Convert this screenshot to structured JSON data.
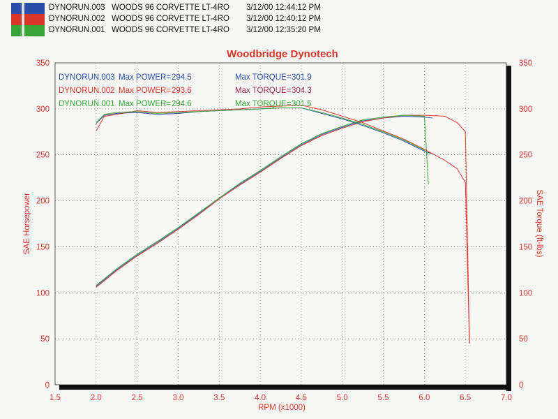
{
  "header": {
    "runs": [
      {
        "id": "DYNORUN.003",
        "vehicle": "WOODS 96 CORVETTE LT-4RO",
        "timestamp": "3/12/00 12:44:12 PM",
        "color": "#2b4fa8"
      },
      {
        "id": "DYNORUN.002",
        "vehicle": "WOODS 96 CORVETTE LT-4RO",
        "timestamp": "3/12/00 12:40:12 PM",
        "color": "#d9362b"
      },
      {
        "id": "DYNORUN.001",
        "vehicle": "WOODS 96 CORVETTE LT-4RO",
        "timestamp": "3/12/00 12:35:20 PM",
        "color": "#3aa63a"
      }
    ]
  },
  "chart_data": {
    "type": "line",
    "title": "Woodbridge Dynotech",
    "xlabel": "RPM (x1000)",
    "ylabel_left": "SAE Horsepower",
    "ylabel_right": "SAE Torque (ft-lbs)",
    "xlim": [
      1.5,
      7.0
    ],
    "ylim_left": [
      0,
      350
    ],
    "ylim_right": [
      0,
      350
    ],
    "x_ticks": [
      "1.5",
      "2.0",
      "2.5",
      "3.0",
      "3.5",
      "4.0",
      "4.5",
      "5.0",
      "5.5",
      "6.0",
      "6.5",
      "7.0"
    ],
    "y_ticks_left": [
      "0",
      "50",
      "100",
      "150",
      "200",
      "250",
      "300",
      "350"
    ],
    "y_ticks_right": [
      "0",
      "50",
      "100",
      "150",
      "200",
      "250",
      "300",
      "350"
    ],
    "grid": true,
    "annotations": [
      {
        "run": "DYNORUN.003",
        "power_label": "Max POWER=",
        "power_value": "294.5",
        "torque_label": "Max TORQUE=",
        "torque_value": "301.9",
        "color": "#2b4fa8"
      },
      {
        "run": "DYNORUN.002",
        "power_label": "Max POWER=",
        "power_value": "293.6",
        "torque_label": "Max TORQUE=",
        "torque_value": "304.3",
        "color": "#d9362b"
      },
      {
        "run": "DYNORUN.001",
        "power_label": "Max POWER=",
        "power_value": "294.6",
        "torque_label": "Max TORQUE=",
        "torque_value": "301.5",
        "color": "#3aa63a"
      }
    ],
    "series": [
      {
        "name": "DYNORUN.003",
        "measure": "power",
        "color": "#2b4fa8",
        "x": [
          2.0,
          2.25,
          2.5,
          2.75,
          3.0,
          3.25,
          3.5,
          3.75,
          4.0,
          4.25,
          4.5,
          4.75,
          5.0,
          5.25,
          5.5,
          5.75,
          6.0,
          6.1
        ],
        "y": [
          107,
          125,
          141,
          155,
          170,
          186,
          203,
          218,
          232,
          247,
          261,
          272,
          280,
          287,
          290,
          292,
          291,
          290
        ]
      },
      {
        "name": "DYNORUN.002",
        "measure": "power",
        "color": "#d9362b",
        "x": [
          2.0,
          2.25,
          2.5,
          2.75,
          3.0,
          3.25,
          3.5,
          3.75,
          4.0,
          4.25,
          4.5,
          4.75,
          5.0,
          5.25,
          5.5,
          5.75,
          6.0,
          6.25,
          6.4,
          6.5,
          6.55
        ],
        "y": [
          106,
          124,
          140,
          154,
          169,
          185,
          202,
          217,
          231,
          246,
          260,
          271,
          279,
          286,
          290,
          293,
          293,
          292,
          285,
          275,
          45
        ]
      },
      {
        "name": "DYNORUN.001",
        "measure": "power",
        "color": "#3aa63a",
        "x": [
          2.0,
          2.25,
          2.5,
          2.75,
          3.0,
          3.25,
          3.5,
          3.75,
          4.0,
          4.25,
          4.5,
          4.75,
          5.0,
          5.25,
          5.5,
          5.75,
          6.0,
          6.05
        ],
        "y": [
          108,
          126,
          142,
          156,
          171,
          187,
          203,
          219,
          233,
          248,
          262,
          273,
          281,
          288,
          291,
          293,
          292,
          218
        ]
      },
      {
        "name": "DYNORUN.003",
        "measure": "torque",
        "color": "#2b4fa8",
        "x": [
          2.0,
          2.1,
          2.25,
          2.5,
          2.75,
          3.0,
          3.25,
          3.5,
          3.75,
          4.0,
          4.25,
          4.5,
          4.75,
          5.0,
          5.25,
          5.5,
          5.75,
          6.0,
          6.1
        ],
        "y": [
          284,
          293,
          295,
          296,
          294,
          295,
          297,
          298,
          299,
          300,
          301,
          301,
          295,
          289,
          282,
          274,
          265,
          254,
          251
        ]
      },
      {
        "name": "DYNORUN.002",
        "measure": "torque",
        "color": "#d9362b",
        "x": [
          2.0,
          2.1,
          2.25,
          2.5,
          2.75,
          3.0,
          3.25,
          3.5,
          3.75,
          4.0,
          4.25,
          4.5,
          4.75,
          5.0,
          5.25,
          5.5,
          5.75,
          6.0,
          6.25,
          6.4,
          6.5,
          6.55
        ],
        "y": [
          276,
          292,
          294,
          298,
          296,
          297,
          298,
          299,
          300,
          302,
          303,
          304,
          299,
          292,
          285,
          276,
          267,
          256,
          244,
          235,
          220,
          45
        ]
      },
      {
        "name": "DYNORUN.001",
        "measure": "torque",
        "color": "#3aa63a",
        "x": [
          2.0,
          2.1,
          2.25,
          2.5,
          2.75,
          3.0,
          3.25,
          3.5,
          3.75,
          4.0,
          4.25,
          4.5,
          4.75,
          5.0,
          5.25,
          5.5,
          5.75,
          6.0,
          6.05
        ],
        "y": [
          285,
          294,
          296,
          297,
          295,
          296,
          297,
          298,
          299,
          300,
          301,
          301,
          296,
          290,
          283,
          275,
          266,
          255,
          250
        ]
      }
    ]
  }
}
